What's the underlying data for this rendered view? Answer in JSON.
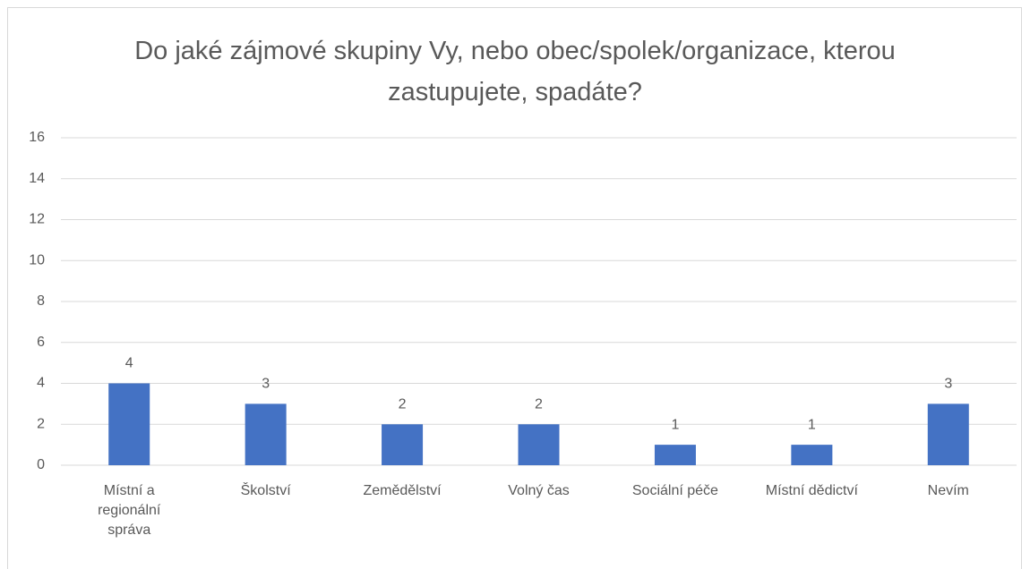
{
  "chart_data": {
    "type": "bar",
    "title": "Do jaké zájmové skupiny Vy, nebo obec/spolek/organizace, kterou zastupujete, spadáte?",
    "categories": [
      "Místní a regionální správa",
      "Školství",
      "Zemědělství",
      "Volný čas",
      "Sociální péče",
      "Místní dědictví",
      "Nevím"
    ],
    "values": [
      4,
      3,
      2,
      2,
      1,
      1,
      3
    ],
    "color": "#4472c4",
    "ylim": [
      0,
      16
    ],
    "yticks": [
      0,
      2,
      4,
      6,
      8,
      10,
      12,
      14,
      16
    ],
    "grid": true
  }
}
